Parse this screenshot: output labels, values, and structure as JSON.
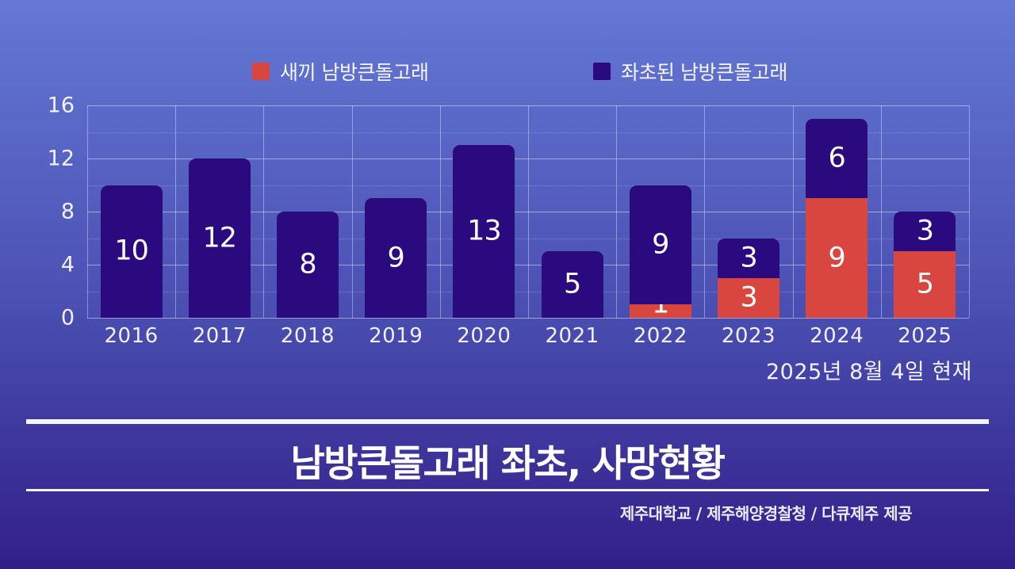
{
  "note": "2025년 8월 4일 현재",
  "title": "남방큰돌고래 좌초, 사망현황",
  "credit": "제주대학교 / 제주해양경찰청 / 다큐제주 제공",
  "colors": {
    "background_top": "#6478d5",
    "background_bottom": "#311f88",
    "calf_red": "#d9453f",
    "stranded_navy": "#2b0a80",
    "text": "#ffffff"
  },
  "chart_data": {
    "type": "bar",
    "stacked": true,
    "title": "남방큰돌고래 좌초, 사망현황",
    "xlabel": "",
    "ylabel": "",
    "categories": [
      "2016",
      "2017",
      "2018",
      "2019",
      "2020",
      "2021",
      "2022",
      "2023",
      "2024",
      "2025"
    ],
    "series": [
      {
        "name": "새끼 남방큰돌고래",
        "color": "#d9453f",
        "values": [
          0,
          0,
          0,
          0,
          0,
          0,
          1,
          3,
          9,
          5
        ]
      },
      {
        "name": "좌초된 남방큰돌고래",
        "color": "#2b0a80",
        "values": [
          10,
          12,
          8,
          9,
          13,
          5,
          9,
          3,
          6,
          3
        ]
      }
    ],
    "totals": [
      10,
      12,
      8,
      9,
      13,
      5,
      10,
      6,
      15,
      8
    ],
    "ylim": [
      0,
      16
    ],
    "yticks": [
      0,
      4,
      8,
      12,
      16
    ],
    "minor_grid_step": 2,
    "grid": true,
    "legend_position": "top",
    "annotation": "2025년 8월 4일 현재"
  }
}
